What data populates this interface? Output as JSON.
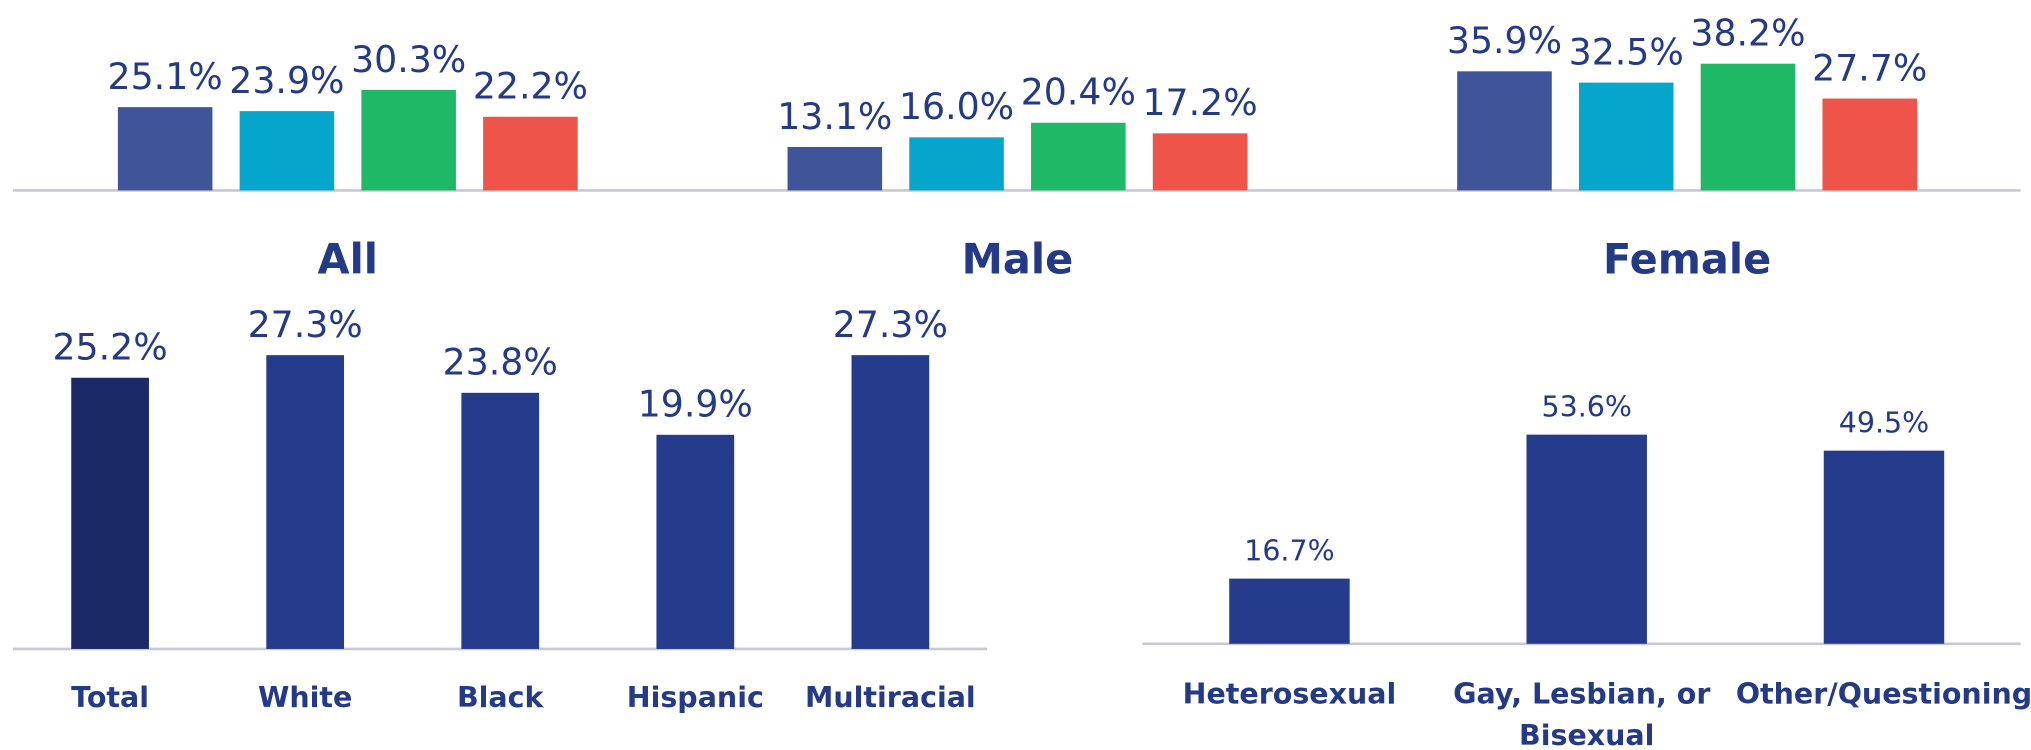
{
  "chart_data": [
    {
      "type": "grouped-bar",
      "categories": [
        "All",
        "Male",
        "Female"
      ],
      "ylim": [
        0,
        57.4
      ],
      "series": [
        {
          "color": "#3f5499",
          "values": [
            25.1,
            13.1,
            35.9
          ],
          "value_labels": [
            "25.1%",
            "13.1%",
            "35.9%"
          ]
        },
        {
          "color": "#06a6cc",
          "values": [
            23.9,
            16.0,
            32.5
          ],
          "value_labels": [
            "23.9%",
            "16.0%",
            "32.5%"
          ]
        },
        {
          "color": "#1fb866",
          "values": [
            30.3,
            20.4,
            38.2
          ],
          "value_labels": [
            "30.3%",
            "20.4%",
            "38.2%"
          ]
        },
        {
          "color": "#ee5449",
          "values": [
            22.2,
            17.2,
            27.7
          ],
          "value_labels": [
            "22.2%",
            "17.2%",
            "27.7%"
          ]
        }
      ]
    },
    {
      "type": "bar",
      "categories": [
        "Total",
        "White",
        "Black",
        "Hispanic",
        "Multiracial"
      ],
      "values": [
        25.2,
        27.3,
        23.8,
        19.9,
        27.3
      ],
      "value_labels": [
        "25.2%",
        "27.3%",
        "23.8%",
        "19.9%",
        "27.3%"
      ],
      "colors": [
        "#1b2a66",
        "#253c8c",
        "#253c8c",
        "#253c8c",
        "#253c8c"
      ],
      "ylim": [
        0,
        60.3
      ]
    },
    {
      "type": "bar",
      "categories": [
        "Heterosexual",
        "Gay, Lesbian, or Bisexual",
        "Other/Questioning"
      ],
      "values": [
        16.7,
        53.6,
        49.5
      ],
      "value_labels": [
        "16.7%",
        "53.6%",
        "49.5%"
      ],
      "colors": [
        "#253c8c",
        "#253c8c",
        "#253c8c"
      ],
      "ylim": [
        0,
        165
      ]
    }
  ]
}
